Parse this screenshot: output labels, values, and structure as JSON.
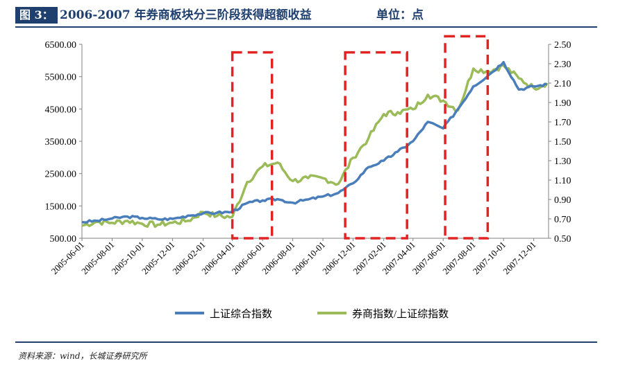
{
  "header": {
    "tag": "图 3：",
    "title": "2006-2007 年券商板块分三阶段获得超额收益",
    "unit": "单位：点"
  },
  "footer": {
    "source": "资料来源：wind，长城证券研究所"
  },
  "chart_data": {
    "type": "line",
    "title": "",
    "xlabel": "",
    "ylabel": "",
    "x_ticks": [
      "2005-06-01",
      "2005-08-01",
      "2005-10-01",
      "2005-12-01",
      "2006-02-01",
      "2006-04-01",
      "2006-06-01",
      "2006-08-01",
      "2006-10-01",
      "2006-12-01",
      "2007-02-01",
      "2007-04-01",
      "2007-06-01",
      "2007-08-01",
      "2007-10-01",
      "2007-12-01"
    ],
    "y_left": {
      "ticks": [
        "500.00",
        "1500.00",
        "2500.00",
        "3500.00",
        "4500.00",
        "5500.00",
        "6500.00"
      ],
      "lim": [
        500,
        6500
      ]
    },
    "y_right": {
      "ticks": [
        "0.50",
        "0.70",
        "0.90",
        "1.10",
        "1.30",
        "1.50",
        "1.70",
        "1.90",
        "2.10",
        "2.30",
        "2.50"
      ],
      "lim": [
        0.5,
        2.5
      ]
    },
    "legend_position": "bottom",
    "grid": false,
    "series": [
      {
        "name": "上证综合指数",
        "axis": "left",
        "color": "#4a7ebb",
        "points": [
          [
            "2005-06-01",
            1000
          ],
          [
            "2005-07-01",
            1040
          ],
          [
            "2005-08-01",
            1110
          ],
          [
            "2005-09-01",
            1170
          ],
          [
            "2005-10-01",
            1130
          ],
          [
            "2005-11-01",
            1090
          ],
          [
            "2005-12-01",
            1100
          ],
          [
            "2006-01-01",
            1200
          ],
          [
            "2006-02-01",
            1270
          ],
          [
            "2006-03-01",
            1290
          ],
          [
            "2006-04-01",
            1320
          ],
          [
            "2006-05-01",
            1590
          ],
          [
            "2006-06-01",
            1670
          ],
          [
            "2006-07-01",
            1710
          ],
          [
            "2006-08-01",
            1600
          ],
          [
            "2006-09-01",
            1700
          ],
          [
            "2006-10-01",
            1790
          ],
          [
            "2006-11-01",
            1900
          ],
          [
            "2006-12-01",
            2200
          ],
          [
            "2007-01-01",
            2700
          ],
          [
            "2007-02-01",
            2900
          ],
          [
            "2007-03-01",
            3180
          ],
          [
            "2007-04-01",
            3500
          ],
          [
            "2007-05-01",
            4100
          ],
          [
            "2007-06-01",
            3900
          ],
          [
            "2007-07-01",
            4500
          ],
          [
            "2007-08-01",
            5200
          ],
          [
            "2007-09-01",
            5550
          ],
          [
            "2007-10-01",
            5950
          ],
          [
            "2007-11-01",
            5100
          ],
          [
            "2007-12-01",
            5200
          ],
          [
            "2007-12-28",
            5260
          ]
        ]
      },
      {
        "name": "券商指数/上证综指数",
        "axis": "right",
        "color": "#9bbb59",
        "points": [
          [
            "2005-06-01",
            0.63
          ],
          [
            "2005-07-01",
            0.67
          ],
          [
            "2005-08-01",
            0.66
          ],
          [
            "2005-09-01",
            0.68
          ],
          [
            "2005-10-01",
            0.65
          ],
          [
            "2005-11-01",
            0.64
          ],
          [
            "2005-12-01",
            0.66
          ],
          [
            "2006-01-01",
            0.68
          ],
          [
            "2006-02-01",
            0.77
          ],
          [
            "2006-03-01",
            0.73
          ],
          [
            "2006-04-01",
            0.72
          ],
          [
            "2006-05-01",
            1.08
          ],
          [
            "2006-06-01",
            1.24
          ],
          [
            "2006-07-01",
            1.28
          ],
          [
            "2006-08-01",
            1.09
          ],
          [
            "2006-09-01",
            1.12
          ],
          [
            "2006-10-01",
            1.12
          ],
          [
            "2006-11-01",
            1.06
          ],
          [
            "2006-12-01",
            1.33
          ],
          [
            "2007-01-01",
            1.53
          ],
          [
            "2007-02-01",
            1.78
          ],
          [
            "2007-03-01",
            1.8
          ],
          [
            "2007-04-01",
            1.83
          ],
          [
            "2007-05-01",
            1.98
          ],
          [
            "2007-06-01",
            1.92
          ],
          [
            "2007-07-01",
            1.82
          ],
          [
            "2007-08-01",
            2.25
          ],
          [
            "2007-09-01",
            2.22
          ],
          [
            "2007-10-01",
            2.28
          ],
          [
            "2007-11-01",
            2.15
          ],
          [
            "2007-12-01",
            2.05
          ],
          [
            "2007-12-28",
            2.1
          ]
        ]
      }
    ],
    "annotations": [
      {
        "type": "dashed-box",
        "color": "#e32222",
        "x_start": "2006-04-01",
        "x_end": "2006-06-20",
        "y_lim": [
          500,
          6250
        ]
      },
      {
        "type": "dashed-box",
        "color": "#e32222",
        "x_start": "2006-11-15",
        "x_end": "2007-03-20",
        "y_lim": [
          500,
          6250
        ]
      },
      {
        "type": "dashed-box",
        "color": "#e32222",
        "x_start": "2007-06-05",
        "x_end": "2007-08-30",
        "y_lim": [
          500,
          6750
        ]
      }
    ]
  }
}
